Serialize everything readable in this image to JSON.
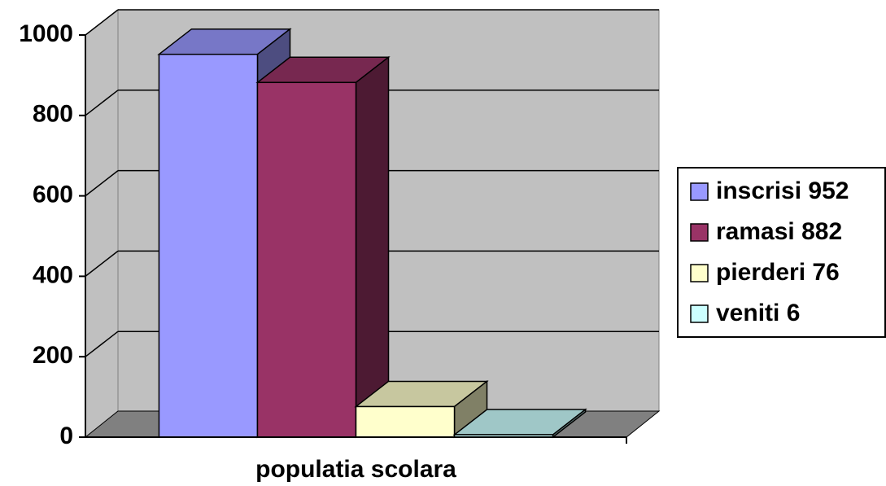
{
  "chart_data": {
    "type": "bar3d",
    "categories": [
      "populatia scolara"
    ],
    "series": [
      {
        "name": "inscrisi 952",
        "color": "#9999ff",
        "values": [
          952
        ]
      },
      {
        "name": "ramasi 882",
        "color": "#993366",
        "values": [
          882
        ]
      },
      {
        "name": "pierderi 76",
        "color": "#ffffcc",
        "values": [
          76
        ]
      },
      {
        "name": "veniti 6",
        "color": "#ccffff",
        "values": [
          6
        ]
      }
    ],
    "ylim": [
      0,
      1000
    ],
    "yticks": [
      0,
      200,
      400,
      600,
      800,
      1000
    ],
    "grid": true,
    "legend": "right"
  }
}
